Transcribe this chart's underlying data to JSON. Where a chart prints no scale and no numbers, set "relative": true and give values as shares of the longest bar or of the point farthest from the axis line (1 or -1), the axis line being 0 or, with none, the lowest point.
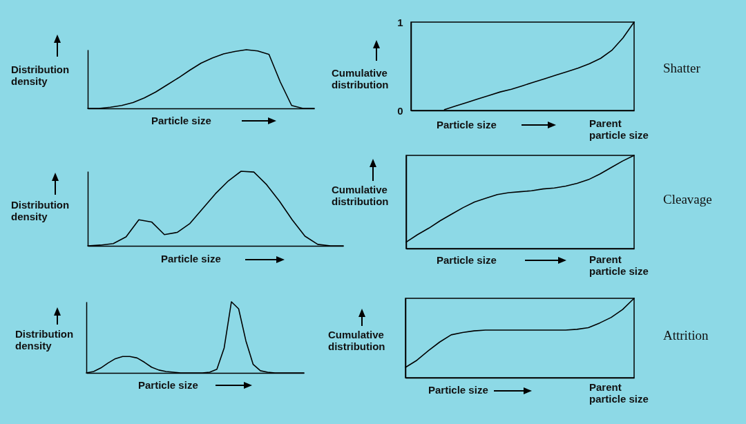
{
  "chart_data": [
    {
      "type": "line",
      "relative": true,
      "xlabel": "Particle size",
      "ylabel": "Distribution density",
      "categories": [
        null,
        null,
        null,
        null,
        null,
        null,
        null,
        null,
        null,
        null,
        null,
        null,
        null,
        null,
        null,
        null,
        null,
        null,
        null,
        null,
        null
      ],
      "series": [
        {
          "color": "#000000",
          "values": [
            0,
            0,
            0.02,
            0.05,
            0.1,
            0.18,
            0.28,
            0.4,
            0.52,
            0.65,
            0.77,
            0.86,
            0.93,
            0.97,
            1,
            0.98,
            0.92,
            0.45,
            0.05,
            0,
            0
          ]
        }
      ]
    },
    {
      "type": "line",
      "xlabel": "Particle size",
      "ylabel": "Cumulative distribution",
      "ylim": [
        0,
        1
      ],
      "yticks": [
        0,
        1
      ],
      "annotations": [
        "Parent particle size",
        "Shatter"
      ],
      "categories": [
        null,
        null,
        null,
        null,
        null,
        null,
        null,
        null,
        null,
        null,
        null,
        null,
        null,
        null,
        null,
        null,
        null,
        null,
        null,
        null,
        null
      ],
      "series": [
        {
          "color": "#000000",
          "values": [
            null,
            null,
            null,
            0.01,
            0.05,
            0.09,
            0.13,
            0.17,
            0.21,
            0.24,
            0.28,
            0.32,
            0.36,
            0.4,
            0.44,
            0.48,
            0.53,
            0.59,
            0.68,
            0.82,
            1
          ]
        }
      ]
    },
    {
      "type": "line",
      "relative": true,
      "xlabel": "Particle size",
      "ylabel": "Distribution density",
      "categories": [
        null,
        null,
        null,
        null,
        null,
        null,
        null,
        null,
        null,
        null,
        null,
        null,
        null,
        null,
        null,
        null,
        null,
        null,
        null,
        null,
        null
      ],
      "series": [
        {
          "color": "#000000",
          "values": [
            0,
            0.01,
            0.03,
            0.12,
            0.35,
            0.32,
            0.15,
            0.18,
            0.3,
            0.5,
            0.7,
            0.87,
            1,
            0.99,
            0.82,
            0.6,
            0.35,
            0.13,
            0.02,
            0,
            0
          ]
        }
      ]
    },
    {
      "type": "line",
      "relative": true,
      "xlabel": "Particle size",
      "ylabel": "Cumulative distribution",
      "annotations": [
        "Parent particle size",
        "Cleavage"
      ],
      "categories": [
        null,
        null,
        null,
        null,
        null,
        null,
        null,
        null,
        null,
        null,
        null,
        null,
        null,
        null,
        null,
        null,
        null,
        null,
        null,
        null,
        null
      ],
      "series": [
        {
          "color": "#000000",
          "values": [
            0.07,
            0.15,
            0.22,
            0.3,
            0.37,
            0.44,
            0.5,
            0.54,
            0.58,
            0.6,
            0.61,
            0.62,
            0.64,
            0.65,
            0.67,
            0.7,
            0.74,
            0.8,
            0.87,
            0.94,
            1
          ]
        }
      ]
    },
    {
      "type": "line",
      "relative": true,
      "xlabel": "Particle size",
      "ylabel": "Distribution density",
      "categories": [
        null,
        null,
        null,
        null,
        null,
        null,
        null,
        null,
        null,
        null,
        null,
        null,
        null,
        null,
        null,
        null,
        null,
        null,
        null,
        null,
        null,
        null,
        null,
        null,
        null,
        null,
        null,
        null,
        null,
        null,
        null
      ],
      "series": [
        {
          "color": "#000000",
          "values": [
            0,
            0.02,
            0.07,
            0.14,
            0.2,
            0.23,
            0.23,
            0.21,
            0.15,
            0.08,
            0.04,
            0.02,
            0.01,
            0,
            0,
            0,
            0,
            0.01,
            0.05,
            0.35,
            1,
            0.9,
            0.45,
            0.12,
            0.03,
            0.01,
            0,
            0,
            0,
            0,
            0
          ]
        }
      ]
    },
    {
      "type": "line",
      "relative": true,
      "xlabel": "Particle size",
      "ylabel": "Cumulative distribution",
      "annotations": [
        "Parent particle size",
        "Attrition"
      ],
      "categories": [
        null,
        null,
        null,
        null,
        null,
        null,
        null,
        null,
        null,
        null,
        null,
        null,
        null,
        null,
        null,
        null,
        null,
        null,
        null,
        null,
        null
      ],
      "series": [
        {
          "color": "#000000",
          "values": [
            0.13,
            0.22,
            0.34,
            0.45,
            0.54,
            0.57,
            0.59,
            0.6,
            0.6,
            0.6,
            0.6,
            0.6,
            0.6,
            0.6,
            0.6,
            0.61,
            0.63,
            0.69,
            0.76,
            0.86,
            1
          ]
        }
      ]
    }
  ]
}
